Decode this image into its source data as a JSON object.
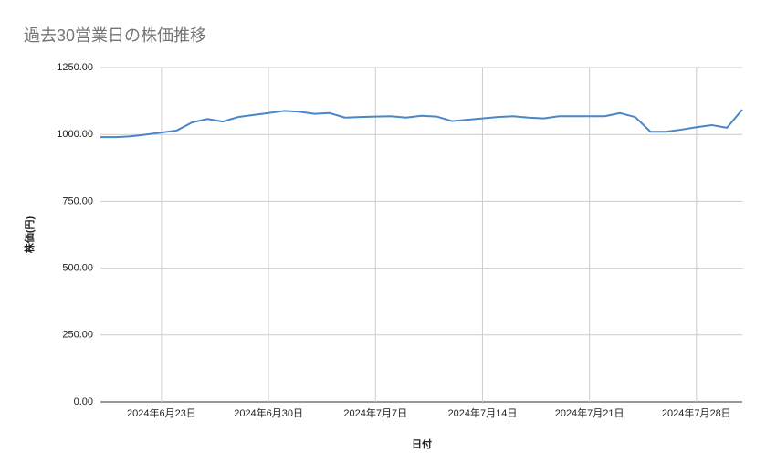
{
  "chart_data": {
    "type": "line",
    "title": "過去30営業日の株価推移",
    "x_label": "日付",
    "y_label": "株価(円)",
    "x": [
      "2024-06-19",
      "2024-06-20",
      "2024-06-21",
      "2024-06-22",
      "2024-06-23",
      "2024-06-24",
      "2024-06-25",
      "2024-06-26",
      "2024-06-27",
      "2024-06-28",
      "2024-06-29",
      "2024-06-30",
      "2024-07-01",
      "2024-07-02",
      "2024-07-03",
      "2024-07-04",
      "2024-07-05",
      "2024-07-06",
      "2024-07-07",
      "2024-07-08",
      "2024-07-09",
      "2024-07-10",
      "2024-07-11",
      "2024-07-12",
      "2024-07-13",
      "2024-07-14",
      "2024-07-15",
      "2024-07-16",
      "2024-07-17",
      "2024-07-18",
      "2024-07-19",
      "2024-07-20",
      "2024-07-21",
      "2024-07-22",
      "2024-07-23",
      "2024-07-24",
      "2024-07-25",
      "2024-07-26",
      "2024-07-27",
      "2024-07-28",
      "2024-07-29",
      "2024-07-30",
      "2024-07-31"
    ],
    "series": [
      {
        "name": "株価",
        "color": "#4a86c8",
        "values": [
          990,
          990,
          993,
          1000,
          1007,
          1015,
          1045,
          1058,
          1048,
          1065,
          1073,
          1080,
          1088,
          1085,
          1077,
          1080,
          1063,
          1065,
          1067,
          1068,
          1063,
          1070,
          1067,
          1050,
          1055,
          1060,
          1065,
          1068,
          1063,
          1060,
          1068,
          1068,
          1068,
          1068,
          1080,
          1065,
          1010,
          1010,
          1018,
          1027,
          1035,
          1025,
          1093
        ]
      }
    ],
    "xlim": [
      "2024-06-19",
      "2024-07-31"
    ],
    "xticks": [
      {
        "value": "2024-06-23",
        "label": "2024年6月23日"
      },
      {
        "value": "2024-06-30",
        "label": "2024年6月30日"
      },
      {
        "value": "2024-07-07",
        "label": "2024年7月7日"
      },
      {
        "value": "2024-07-14",
        "label": "2024年7月14日"
      },
      {
        "value": "2024-07-21",
        "label": "2024年7月21日"
      },
      {
        "value": "2024-07-28",
        "label": "2024年7月28日"
      }
    ],
    "ylim": [
      0,
      1250
    ],
    "yticks": [
      {
        "value": 0,
        "label": "0.00"
      },
      {
        "value": 250,
        "label": "250.00"
      },
      {
        "value": 500,
        "label": "500.00"
      },
      {
        "value": 750,
        "label": "750.00"
      },
      {
        "value": 1000,
        "label": "1000.00"
      },
      {
        "value": 1250,
        "label": "1250.00"
      }
    ],
    "grid": true
  }
}
